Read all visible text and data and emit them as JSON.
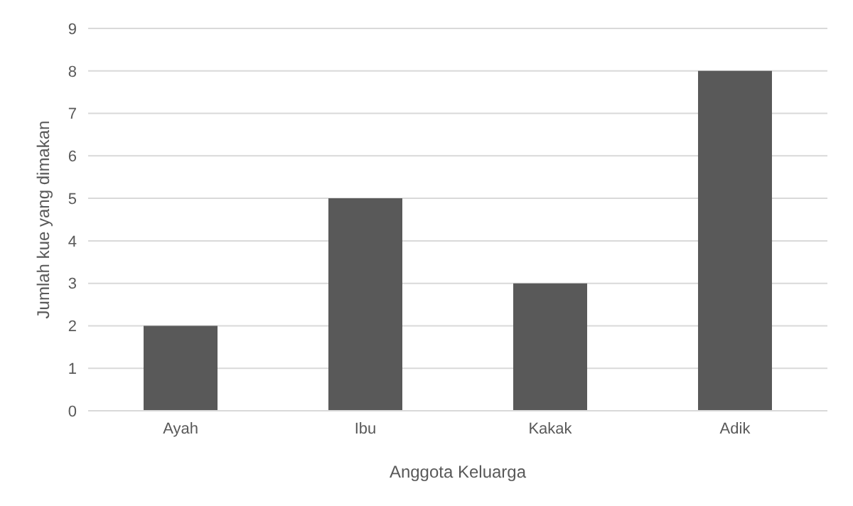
{
  "chart_data": {
    "type": "bar",
    "xlabel": "Anggota Keluarga",
    "ylabel": "Jumlah kue yang dimakan",
    "categories": [
      "Ayah",
      "Ibu",
      "Kakak",
      "Adik"
    ],
    "values": [
      2,
      5,
      3,
      8
    ],
    "color": "#595959",
    "ylim": [
      0,
      9
    ],
    "yticks": [
      0,
      1,
      2,
      3,
      4,
      5,
      6,
      7,
      8,
      9
    ],
    "grid": "y",
    "legend": false
  }
}
